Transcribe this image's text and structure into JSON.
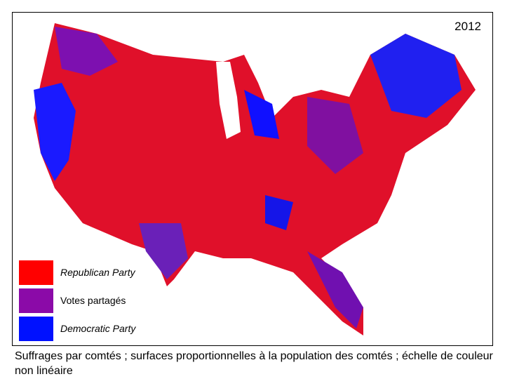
{
  "year": "2012",
  "legend": [
    {
      "label": "Republican Party",
      "color": "#ff0000"
    },
    {
      "label": "Votes partagés",
      "color": "#8b0aa8"
    },
    {
      "label": "Democratic Party",
      "color": "#0011ff"
    }
  ],
  "caption": "Suffrages par comtés ; surfaces proportionnelles à la population des comtés ; échelle de couleur non linéaire"
}
